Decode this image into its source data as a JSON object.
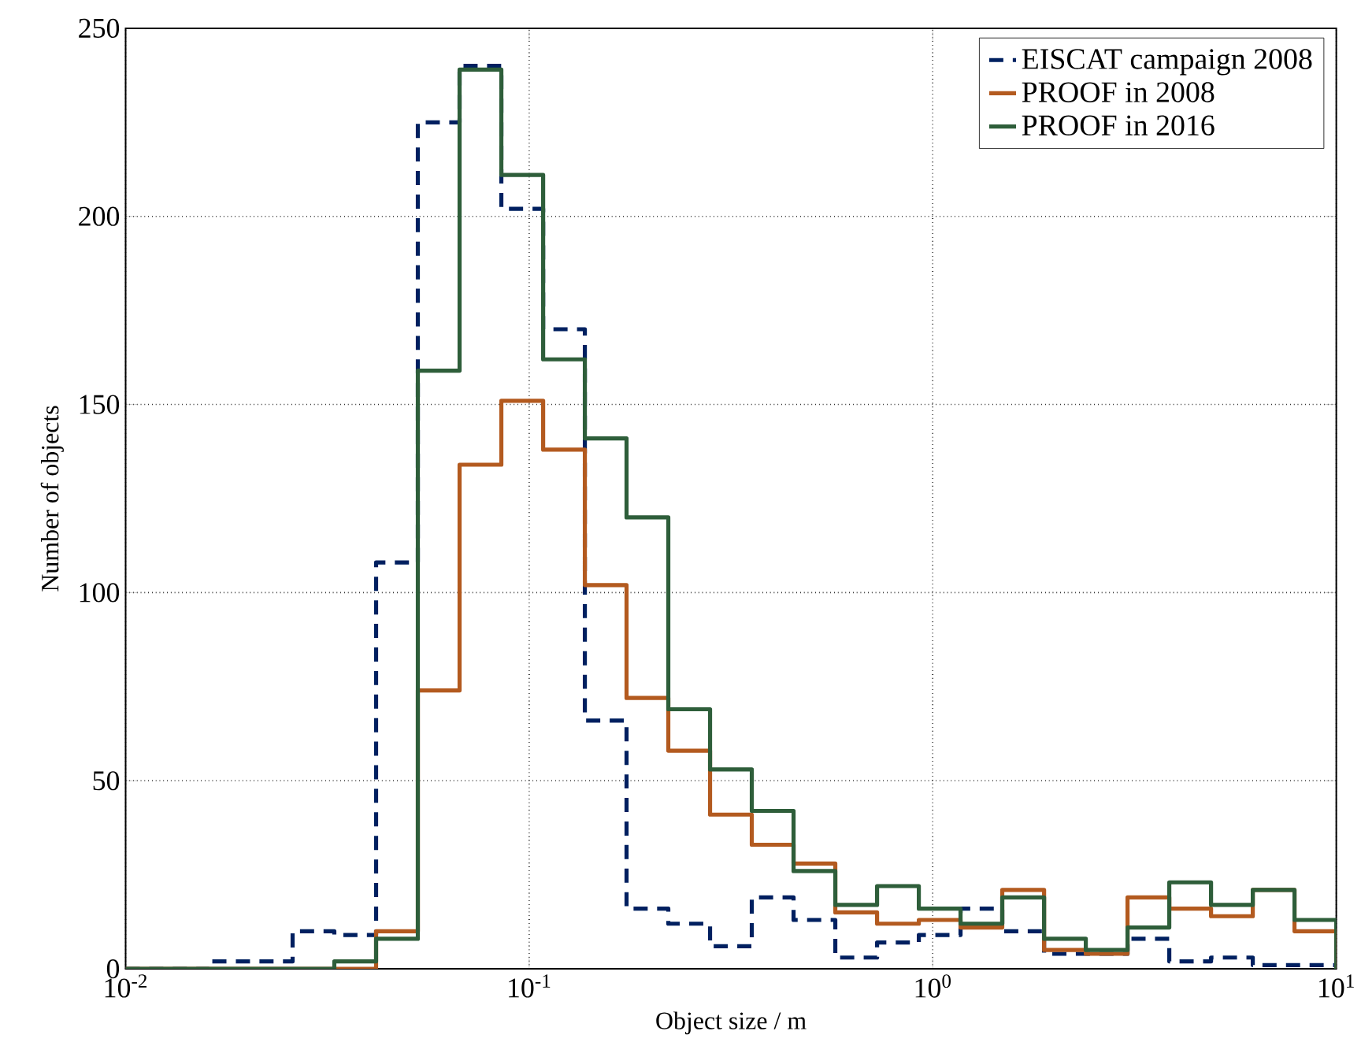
{
  "chart_data": {
    "type": "histogram",
    "xlabel": "Object size / m",
    "ylabel": "Number of objects",
    "bins": [
      0.01,
      0.01269,
      0.0161,
      0.02043,
      0.02593,
      0.0329,
      0.04175,
      0.05298,
      0.06723,
      0.08532,
      0.1083,
      0.1374,
      0.1743,
      0.2212,
      0.2807,
      0.3562,
      0.452,
      0.5736,
      0.7279,
      0.9237,
      1.172,
      1.487,
      1.888,
      2.395,
      3.039,
      3.857,
      4.894,
      6.21,
      7.88,
      10.0
    ],
    "series": [
      {
        "name": "EISCAT campaign 2008",
        "color": "#002060",
        "line_style": "dashed",
        "values": [
          0,
          0,
          2,
          2,
          10,
          9,
          108,
          225,
          240,
          202,
          170,
          66,
          16,
          12,
          6,
          19,
          13,
          3,
          7,
          9,
          16,
          10,
          4,
          4,
          8,
          2,
          3,
          1,
          1
        ]
      },
      {
        "name": "PROOF in 2008",
        "color": "#b35a1f",
        "line_style": "solid",
        "values": [
          0,
          0,
          0,
          0,
          0,
          0,
          10,
          74,
          134,
          151,
          138,
          102,
          72,
          58,
          41,
          33,
          28,
          15,
          12,
          13,
          11,
          21,
          5,
          4,
          19,
          16,
          14,
          21,
          10
        ]
      },
      {
        "name": "PROOF in 2016",
        "color": "#2e5e3a",
        "line_style": "solid",
        "values": [
          0,
          0,
          0,
          0,
          0,
          2,
          8,
          159,
          239,
          211,
          162,
          141,
          120,
          69,
          53,
          42,
          26,
          17,
          22,
          16,
          12,
          19,
          8,
          5,
          11,
          23,
          17,
          21,
          13
        ]
      }
    ],
    "log": "x",
    "xlim": [
      0.01,
      10
    ],
    "ylim": [
      0,
      250
    ],
    "xticks": [
      {
        "value": 0.01,
        "label": "10$^{-2}$"
      },
      {
        "value": 0.1,
        "label": "10$^{-1}$"
      },
      {
        "value": 1,
        "label": "10$^{0}$"
      },
      {
        "value": 10,
        "label": "10$^{1}$"
      }
    ],
    "yticks": [
      0,
      50,
      100,
      150,
      200,
      250
    ],
    "grid": true,
    "legend": "top right"
  }
}
